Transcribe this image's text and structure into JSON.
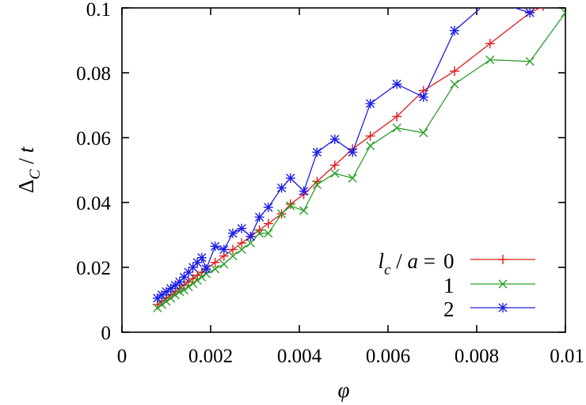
{
  "chart_data": {
    "type": "line",
    "xlabel": "φ",
    "ylabel": "Δ_C / t",
    "xlim": [
      0,
      0.01
    ],
    "ylim": [
      0,
      0.1
    ],
    "xticks": [
      "0",
      "0.002",
      "0.004",
      "0.006",
      "0.008",
      "0.01"
    ],
    "yticks": [
      "0",
      "0.02",
      "0.04",
      "0.06",
      "0.08",
      "0.1"
    ],
    "xtick_values": [
      0,
      0.002,
      0.004,
      0.006,
      0.008,
      0.01
    ],
    "ytick_values": [
      0,
      0.02,
      0.04,
      0.06,
      0.08,
      0.1
    ],
    "grid": false,
    "legend_position": "bottom-right",
    "legend_title": "l_c / a =",
    "series": [
      {
        "name": "0",
        "color": "#e41a1c",
        "marker": "plus",
        "x": [
          0.0008,
          0.0009,
          0.001,
          0.0011,
          0.0012,
          0.0013,
          0.0014,
          0.0015,
          0.0016,
          0.0017,
          0.0018,
          0.0019,
          0.0021,
          0.0023,
          0.0025,
          0.0027,
          0.0029,
          0.0031,
          0.0033,
          0.0036,
          0.0038,
          0.0041,
          0.0044,
          0.0048,
          0.0052,
          0.0056,
          0.0062,
          0.0068,
          0.0075,
          0.0083,
          0.0092,
          0.0095
        ],
        "y": [
          0.0085,
          0.0095,
          0.0105,
          0.0115,
          0.0125,
          0.0135,
          0.0145,
          0.0155,
          0.0165,
          0.0175,
          0.0185,
          0.0195,
          0.0215,
          0.0235,
          0.0255,
          0.0275,
          0.0295,
          0.0315,
          0.0335,
          0.0365,
          0.0395,
          0.0425,
          0.0465,
          0.0515,
          0.0565,
          0.0605,
          0.0665,
          0.0745,
          0.0805,
          0.089,
          0.0985,
          0.1005
        ]
      },
      {
        "name": "1",
        "color": "#2ca02c",
        "marker": "cross",
        "x": [
          0.0008,
          0.0009,
          0.001,
          0.0011,
          0.0012,
          0.0013,
          0.0014,
          0.0015,
          0.0016,
          0.0017,
          0.0018,
          0.0019,
          0.0021,
          0.0023,
          0.0025,
          0.0027,
          0.0029,
          0.0031,
          0.0033,
          0.0036,
          0.0038,
          0.0041,
          0.0044,
          0.0048,
          0.0052,
          0.0056,
          0.0062,
          0.0068,
          0.0075,
          0.0083,
          0.0092,
          0.01
        ],
        "y": [
          0.0075,
          0.0085,
          0.0095,
          0.0105,
          0.0115,
          0.0125,
          0.013,
          0.014,
          0.015,
          0.016,
          0.017,
          0.018,
          0.0195,
          0.021,
          0.0235,
          0.0255,
          0.0275,
          0.0305,
          0.0305,
          0.0365,
          0.039,
          0.0375,
          0.0455,
          0.049,
          0.0475,
          0.0575,
          0.063,
          0.0615,
          0.0765,
          0.084,
          0.0835,
          0.0985
        ]
      },
      {
        "name": "2",
        "color": "#1f1fe6",
        "marker": "star",
        "x": [
          0.0008,
          0.0009,
          0.001,
          0.0011,
          0.0012,
          0.0013,
          0.0014,
          0.0015,
          0.0016,
          0.0017,
          0.0018,
          0.0019,
          0.0021,
          0.0023,
          0.0025,
          0.0027,
          0.0029,
          0.0031,
          0.0033,
          0.0036,
          0.0038,
          0.0041,
          0.0044,
          0.0048,
          0.0052,
          0.0056,
          0.0062,
          0.0068,
          0.0075,
          0.0083,
          0.0092
        ],
        "y": [
          0.0105,
          0.0115,
          0.0125,
          0.0135,
          0.0145,
          0.0155,
          0.017,
          0.0185,
          0.02,
          0.0215,
          0.023,
          0.0195,
          0.0265,
          0.0255,
          0.0305,
          0.032,
          0.0295,
          0.0355,
          0.0385,
          0.0445,
          0.0475,
          0.0435,
          0.0555,
          0.0595,
          0.0555,
          0.0705,
          0.0765,
          0.0725,
          0.093,
          0.1025,
          0.0985
        ]
      }
    ]
  }
}
